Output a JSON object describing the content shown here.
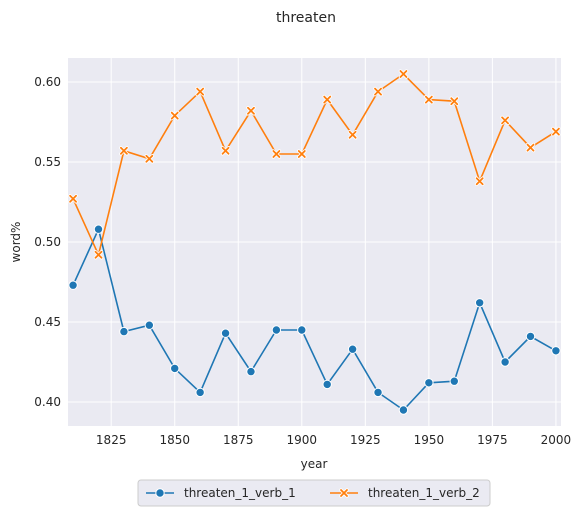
{
  "chart_data": {
    "type": "line",
    "title": "threaten",
    "xlabel": "year",
    "ylabel": "word%",
    "xlim": [
      1808,
      2002
    ],
    "ylim": [
      0.385,
      0.615
    ],
    "x_ticks": [
      1825,
      1850,
      1875,
      1900,
      1925,
      1950,
      1975,
      2000
    ],
    "y_ticks": [
      "0.40",
      "0.45",
      "0.50",
      "0.55",
      "0.60"
    ],
    "grid": true,
    "legend_position": "bottom-center",
    "x": [
      1810,
      1820,
      1830,
      1840,
      1850,
      1860,
      1870,
      1880,
      1890,
      1900,
      1910,
      1920,
      1930,
      1940,
      1950,
      1960,
      1970,
      1980,
      1990,
      2000
    ],
    "series": [
      {
        "name": "threaten_1_verb_1",
        "color": "#1f77b4",
        "marker": "circle",
        "values": [
          0.473,
          0.508,
          0.444,
          0.448,
          0.421,
          0.406,
          0.443,
          0.419,
          0.445,
          0.445,
          0.411,
          0.433,
          0.406,
          0.395,
          0.412,
          0.413,
          0.462,
          0.425,
          0.441,
          0.432
        ]
      },
      {
        "name": "threaten_1_verb_2",
        "color": "#ff7f0e",
        "marker": "x",
        "values": [
          0.527,
          0.492,
          0.557,
          0.552,
          0.579,
          0.594,
          0.557,
          0.582,
          0.555,
          0.555,
          0.589,
          0.567,
          0.594,
          0.605,
          0.589,
          0.588,
          0.538,
          0.576,
          0.559,
          0.569
        ]
      }
    ]
  }
}
